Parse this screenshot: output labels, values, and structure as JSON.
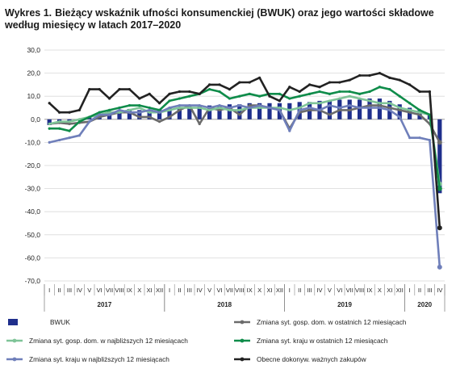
{
  "chart_data": {
    "type": "bar+line",
    "title_number": "Wykres 1.",
    "title": "Bieżący wskaźnik ufności konsumenckiej (BWUK) oraz jego wartości składowe według miesięcy w latach 2017–2020",
    "ylim": [
      -70,
      30
    ],
    "yticks": [
      "30,0",
      "20,0",
      "10,0",
      "0,0",
      "-10,0",
      "-20,0",
      "-30,0",
      "-40,0",
      "-50,0",
      "-60,0",
      "-70,0"
    ],
    "ytick_values": [
      30,
      20,
      10,
      0,
      -10,
      -20,
      -30,
      -40,
      -50,
      -60,
      -70
    ],
    "grid": true,
    "month_labels": [
      "I",
      "II",
      "III",
      "IV",
      "V",
      "VI",
      "VII",
      "VIII",
      "IX",
      "X",
      "XI",
      "XII",
      "I",
      "II",
      "III",
      "IV",
      "V",
      "VI",
      "VII",
      "VIII",
      "IX",
      "X",
      "XI",
      "XII",
      "I",
      "II",
      "III",
      "IV",
      "V",
      "VI",
      "VII",
      "VIII",
      "IX",
      "X",
      "XI",
      "XII",
      "I",
      "II",
      "III",
      "IV"
    ],
    "year_labels": [
      {
        "label": "2017",
        "start": 0,
        "end": 11
      },
      {
        "label": "2018",
        "start": 12,
        "end": 23
      },
      {
        "label": "2019",
        "start": 24,
        "end": 35
      },
      {
        "label": "2020",
        "start": 36,
        "end": 39
      }
    ],
    "series": [
      {
        "name": "BWUK",
        "kind": "bar",
        "color": "#1f2f8c",
        "values": [
          -2.5,
          -1.5,
          -1,
          -0.5,
          1,
          2.5,
          3.5,
          3,
          4.5,
          4,
          4,
          4.5,
          5,
          5,
          5.5,
          5.5,
          6,
          6,
          6.5,
          6.5,
          7,
          7,
          7,
          7,
          7,
          7.5,
          7.5,
          8,
          8,
          8.5,
          8.5,
          8.5,
          9,
          9,
          8,
          6.5,
          5,
          4,
          2,
          -32
        ]
      },
      {
        "name": "Zmiana syt. gosp. dom. w ostatnich 12 miesiącach",
        "kind": "line",
        "color": "#6b6b6b",
        "values": [
          -2,
          -1.5,
          -2,
          -1.5,
          -1,
          1,
          2,
          3,
          3,
          1,
          1,
          -1,
          1,
          4,
          6,
          -2,
          5,
          4,
          5,
          2,
          6,
          6,
          5,
          4,
          -4,
          3,
          4,
          4,
          2,
          4,
          4,
          5,
          6,
          6,
          5,
          4,
          3,
          2,
          -2,
          -10
        ]
      },
      {
        "name": "Zmiana syt. gosp. dom. w najbliższych 12 miesiącach",
        "kind": "line",
        "color": "#7fc498",
        "values": [
          -2,
          -1,
          -1,
          0,
          1,
          2,
          3,
          3,
          4,
          5,
          3,
          3,
          4,
          5,
          5,
          5,
          4,
          5,
          4,
          4,
          5,
          5,
          5,
          5,
          4,
          5,
          7,
          7,
          8,
          9,
          10,
          9,
          8,
          7,
          7,
          5,
          4,
          3,
          2,
          -28
        ]
      },
      {
        "name": "Zmiana syt. kraju w ostatnich 12 miesiącach",
        "kind": "line",
        "color": "#0f8c4a",
        "values": [
          -4,
          -4,
          -5,
          -1,
          1,
          3,
          4,
          5,
          6,
          6,
          5,
          4,
          8,
          9,
          10,
          11,
          13,
          12,
          9,
          10,
          11,
          10,
          11,
          11,
          9,
          10,
          11,
          12,
          11,
          12,
          12,
          11,
          12,
          14,
          13,
          10,
          7,
          4,
          2,
          -30
        ]
      },
      {
        "name": "Zmiana syt. kraju w najbliższych 12 miesiącach",
        "kind": "line",
        "color": "#6f7fba",
        "values": [
          -10,
          -9,
          -8,
          -7,
          -1,
          2,
          2,
          4,
          3,
          3,
          4,
          3,
          5,
          6,
          6,
          6,
          5,
          6,
          5,
          6,
          5,
          6,
          5,
          4,
          -5,
          4,
          5,
          4,
          6,
          5,
          6,
          5,
          5,
          5,
          4,
          1,
          -8,
          -8,
          -9,
          -64
        ]
      },
      {
        "name": "Obecne dokonyw. ważnych zakupów",
        "kind": "line",
        "color": "#222222",
        "values": [
          7,
          3,
          3,
          4,
          13,
          13,
          9,
          13,
          13,
          9,
          11,
          7,
          11,
          12,
          12,
          11,
          15,
          15,
          13,
          16,
          16,
          18,
          10,
          8,
          14,
          12,
          15,
          14,
          16,
          16,
          17,
          19,
          19,
          20,
          18,
          17,
          15,
          12,
          12,
          -47
        ]
      }
    ],
    "legend": [
      {
        "label": "BWUK",
        "kind": "bar",
        "color": "#1f2f8c"
      },
      {
        "label": "Zmiana syt. gosp. dom. w ostatnich 12 miesiącach",
        "kind": "line",
        "color": "#6b6b6b"
      },
      {
        "label": "Zmiana syt. gosp. dom. w najbliższych 12 miesiącach",
        "kind": "line",
        "color": "#7fc498"
      },
      {
        "label": "Zmiana syt. kraju w ostatnich 12 miesiącach",
        "kind": "line",
        "color": "#0f8c4a"
      },
      {
        "label": "Zmiana syt. kraju w najbliższych 12 miesiącach",
        "kind": "line",
        "color": "#6f7fba"
      },
      {
        "label": "Obecne dokonyw. ważnych zakupów",
        "kind": "line",
        "color": "#222222"
      }
    ]
  }
}
